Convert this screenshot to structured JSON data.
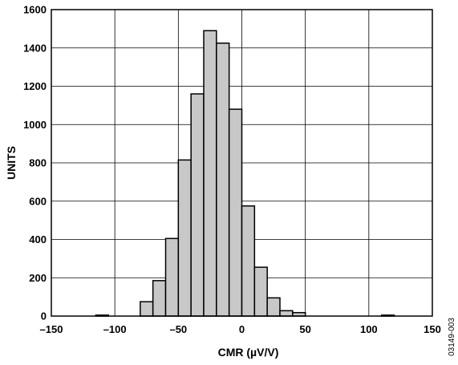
{
  "chart_data": {
    "type": "bar",
    "histogram": true,
    "bin_width": 10,
    "bins": [
      {
        "x": -115,
        "value": 5
      },
      {
        "x": -80,
        "value": 75
      },
      {
        "x": -70,
        "value": 185
      },
      {
        "x": -60,
        "value": 405
      },
      {
        "x": -50,
        "value": 815
      },
      {
        "x": -40,
        "value": 1160
      },
      {
        "x": -30,
        "value": 1490
      },
      {
        "x": -20,
        "value": 1425
      },
      {
        "x": -10,
        "value": 1080
      },
      {
        "x": 0,
        "value": 575
      },
      {
        "x": 10,
        "value": 255
      },
      {
        "x": 20,
        "value": 95
      },
      {
        "x": 30,
        "value": 28
      },
      {
        "x": 40,
        "value": 18
      },
      {
        "x": 110,
        "value": 5
      }
    ],
    "xlim": [
      -150,
      150
    ],
    "ylim": [
      0,
      1600
    ],
    "xticks": [
      -150,
      -100,
      -50,
      0,
      50,
      100,
      150
    ],
    "yticks": [
      0,
      200,
      400,
      600,
      800,
      1000,
      1200,
      1400,
      1600
    ],
    "xtick_labels": [
      "–150",
      "–100",
      "–50",
      "0",
      "50",
      "100",
      "150"
    ],
    "ytick_labels": [
      "0",
      "200",
      "400",
      "600",
      "800",
      "1000",
      "1200",
      "1400",
      "1600"
    ],
    "xlabel": "CMR (µV/V)",
    "ylabel": "UNITS",
    "title": "",
    "grid": true,
    "bar_color": "#c8c8c8",
    "bar_edge_color": "#000000"
  },
  "figure_id": "03149-003"
}
